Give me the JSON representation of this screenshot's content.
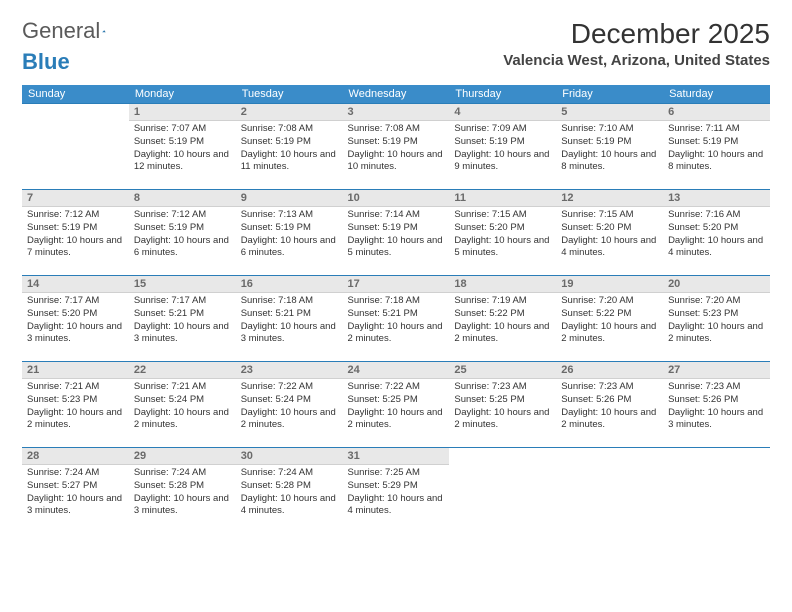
{
  "logo": {
    "word1": "General",
    "word2": "Blue"
  },
  "title": "December 2025",
  "location": "Valencia West, Arizona, United States",
  "dow": [
    "Sunday",
    "Monday",
    "Tuesday",
    "Wednesday",
    "Thursday",
    "Friday",
    "Saturday"
  ],
  "colors": {
    "header_bg": "#3a8cc9",
    "cell_border": "#2a7db8",
    "daynum_bg": "#e8e8e8"
  },
  "weeks": [
    [
      {
        "n": "",
        "sr": "",
        "ss": "",
        "dl": ""
      },
      {
        "n": "1",
        "sr": "Sunrise: 7:07 AM",
        "ss": "Sunset: 5:19 PM",
        "dl": "Daylight: 10 hours and 12 minutes."
      },
      {
        "n": "2",
        "sr": "Sunrise: 7:08 AM",
        "ss": "Sunset: 5:19 PM",
        "dl": "Daylight: 10 hours and 11 minutes."
      },
      {
        "n": "3",
        "sr": "Sunrise: 7:08 AM",
        "ss": "Sunset: 5:19 PM",
        "dl": "Daylight: 10 hours and 10 minutes."
      },
      {
        "n": "4",
        "sr": "Sunrise: 7:09 AM",
        "ss": "Sunset: 5:19 PM",
        "dl": "Daylight: 10 hours and 9 minutes."
      },
      {
        "n": "5",
        "sr": "Sunrise: 7:10 AM",
        "ss": "Sunset: 5:19 PM",
        "dl": "Daylight: 10 hours and 8 minutes."
      },
      {
        "n": "6",
        "sr": "Sunrise: 7:11 AM",
        "ss": "Sunset: 5:19 PM",
        "dl": "Daylight: 10 hours and 8 minutes."
      }
    ],
    [
      {
        "n": "7",
        "sr": "Sunrise: 7:12 AM",
        "ss": "Sunset: 5:19 PM",
        "dl": "Daylight: 10 hours and 7 minutes."
      },
      {
        "n": "8",
        "sr": "Sunrise: 7:12 AM",
        "ss": "Sunset: 5:19 PM",
        "dl": "Daylight: 10 hours and 6 minutes."
      },
      {
        "n": "9",
        "sr": "Sunrise: 7:13 AM",
        "ss": "Sunset: 5:19 PM",
        "dl": "Daylight: 10 hours and 6 minutes."
      },
      {
        "n": "10",
        "sr": "Sunrise: 7:14 AM",
        "ss": "Sunset: 5:19 PM",
        "dl": "Daylight: 10 hours and 5 minutes."
      },
      {
        "n": "11",
        "sr": "Sunrise: 7:15 AM",
        "ss": "Sunset: 5:20 PM",
        "dl": "Daylight: 10 hours and 5 minutes."
      },
      {
        "n": "12",
        "sr": "Sunrise: 7:15 AM",
        "ss": "Sunset: 5:20 PM",
        "dl": "Daylight: 10 hours and 4 minutes."
      },
      {
        "n": "13",
        "sr": "Sunrise: 7:16 AM",
        "ss": "Sunset: 5:20 PM",
        "dl": "Daylight: 10 hours and 4 minutes."
      }
    ],
    [
      {
        "n": "14",
        "sr": "Sunrise: 7:17 AM",
        "ss": "Sunset: 5:20 PM",
        "dl": "Daylight: 10 hours and 3 minutes."
      },
      {
        "n": "15",
        "sr": "Sunrise: 7:17 AM",
        "ss": "Sunset: 5:21 PM",
        "dl": "Daylight: 10 hours and 3 minutes."
      },
      {
        "n": "16",
        "sr": "Sunrise: 7:18 AM",
        "ss": "Sunset: 5:21 PM",
        "dl": "Daylight: 10 hours and 3 minutes."
      },
      {
        "n": "17",
        "sr": "Sunrise: 7:18 AM",
        "ss": "Sunset: 5:21 PM",
        "dl": "Daylight: 10 hours and 2 minutes."
      },
      {
        "n": "18",
        "sr": "Sunrise: 7:19 AM",
        "ss": "Sunset: 5:22 PM",
        "dl": "Daylight: 10 hours and 2 minutes."
      },
      {
        "n": "19",
        "sr": "Sunrise: 7:20 AM",
        "ss": "Sunset: 5:22 PM",
        "dl": "Daylight: 10 hours and 2 minutes."
      },
      {
        "n": "20",
        "sr": "Sunrise: 7:20 AM",
        "ss": "Sunset: 5:23 PM",
        "dl": "Daylight: 10 hours and 2 minutes."
      }
    ],
    [
      {
        "n": "21",
        "sr": "Sunrise: 7:21 AM",
        "ss": "Sunset: 5:23 PM",
        "dl": "Daylight: 10 hours and 2 minutes."
      },
      {
        "n": "22",
        "sr": "Sunrise: 7:21 AM",
        "ss": "Sunset: 5:24 PM",
        "dl": "Daylight: 10 hours and 2 minutes."
      },
      {
        "n": "23",
        "sr": "Sunrise: 7:22 AM",
        "ss": "Sunset: 5:24 PM",
        "dl": "Daylight: 10 hours and 2 minutes."
      },
      {
        "n": "24",
        "sr": "Sunrise: 7:22 AM",
        "ss": "Sunset: 5:25 PM",
        "dl": "Daylight: 10 hours and 2 minutes."
      },
      {
        "n": "25",
        "sr": "Sunrise: 7:23 AM",
        "ss": "Sunset: 5:25 PM",
        "dl": "Daylight: 10 hours and 2 minutes."
      },
      {
        "n": "26",
        "sr": "Sunrise: 7:23 AM",
        "ss": "Sunset: 5:26 PM",
        "dl": "Daylight: 10 hours and 2 minutes."
      },
      {
        "n": "27",
        "sr": "Sunrise: 7:23 AM",
        "ss": "Sunset: 5:26 PM",
        "dl": "Daylight: 10 hours and 3 minutes."
      }
    ],
    [
      {
        "n": "28",
        "sr": "Sunrise: 7:24 AM",
        "ss": "Sunset: 5:27 PM",
        "dl": "Daylight: 10 hours and 3 minutes."
      },
      {
        "n": "29",
        "sr": "Sunrise: 7:24 AM",
        "ss": "Sunset: 5:28 PM",
        "dl": "Daylight: 10 hours and 3 minutes."
      },
      {
        "n": "30",
        "sr": "Sunrise: 7:24 AM",
        "ss": "Sunset: 5:28 PM",
        "dl": "Daylight: 10 hours and 4 minutes."
      },
      {
        "n": "31",
        "sr": "Sunrise: 7:25 AM",
        "ss": "Sunset: 5:29 PM",
        "dl": "Daylight: 10 hours and 4 minutes."
      },
      {
        "n": "",
        "sr": "",
        "ss": "",
        "dl": ""
      },
      {
        "n": "",
        "sr": "",
        "ss": "",
        "dl": ""
      },
      {
        "n": "",
        "sr": "",
        "ss": "",
        "dl": ""
      }
    ]
  ]
}
